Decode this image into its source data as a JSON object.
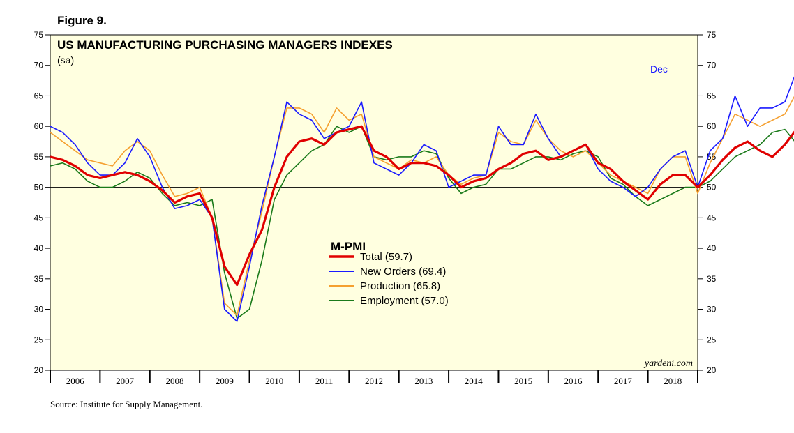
{
  "figure_label": "Figure 9.",
  "source": "Source: Institute for Supply Management.",
  "watermark": "yardeni.com",
  "end_label": "Dec",
  "colors": {
    "background": "#ffffe0",
    "total": "#e00000",
    "new_orders": "#1a1aff",
    "production": "#f5a030",
    "employment": "#1a7a1a"
  },
  "chart_data": {
    "type": "line",
    "title": "US MANUFACTURING PURCHASING MANAGERS INDEXES",
    "subtitle": "(sa)",
    "xlabel": "",
    "ylabel": "",
    "ylim": [
      20,
      75
    ],
    "yticks": [
      20,
      25,
      30,
      35,
      40,
      45,
      50,
      55,
      60,
      65,
      70,
      75
    ],
    "reference_line": 50,
    "x_start": 2006.0,
    "x_end": 2019.0,
    "x_step": 0.25,
    "x_tick_labels": [
      "2006",
      "2007",
      "2008",
      "2009",
      "2010",
      "2011",
      "2012",
      "2013",
      "2014",
      "2015",
      "2016",
      "2017",
      "2018"
    ],
    "legend_title": "M-PMI",
    "legend_position": "center",
    "series": [
      {
        "key": "total",
        "name": "Total (59.7)",
        "values": [
          55,
          54.5,
          53.5,
          52,
          51.5,
          52,
          52.5,
          52,
          51,
          49.5,
          47.5,
          48.5,
          49,
          45,
          37,
          34,
          39,
          43,
          50,
          55,
          57.5,
          58,
          57,
          59,
          59.5,
          60,
          56,
          55,
          53,
          54,
          54,
          53.5,
          52,
          50,
          51,
          51.5,
          53,
          54,
          55.5,
          56,
          54.5,
          55,
          56,
          57,
          54,
          53,
          51,
          49.5,
          48,
          50.5,
          52,
          52,
          50,
          52,
          54.5,
          56.5,
          57.5,
          56,
          55,
          57,
          59.7
        ]
      },
      {
        "key": "new_orders",
        "name": "New Orders (69.4)",
        "values": [
          60,
          59,
          57,
          54,
          52,
          52,
          54,
          58,
          55,
          50,
          46.5,
          47,
          48,
          45,
          30,
          28,
          37,
          47,
          55,
          64,
          62,
          61,
          58,
          59,
          60,
          64,
          54,
          53,
          52,
          54,
          57,
          56,
          50,
          51,
          52,
          52,
          60,
          57,
          57,
          62,
          58,
          55,
          56,
          57,
          53,
          51,
          50,
          48.5,
          50,
          53,
          55,
          56,
          50,
          56,
          58,
          65,
          60,
          63,
          63,
          64,
          69.4
        ]
      },
      {
        "key": "production",
        "name": "Production (65.8)",
        "values": [
          59,
          57.5,
          56,
          54.5,
          54,
          53.5,
          56,
          57.5,
          56,
          52,
          48.5,
          49,
          50,
          45,
          31,
          29,
          38,
          46,
          55,
          63,
          63,
          62,
          59,
          63,
          61,
          62,
          55,
          54,
          53,
          54.5,
          54,
          55,
          52,
          50.5,
          51.5,
          52,
          59,
          57.5,
          57,
          61,
          58,
          56,
          55,
          56,
          54,
          52,
          51,
          50,
          49,
          53,
          55,
          55,
          49,
          54,
          58,
          62,
          61,
          60,
          61,
          62,
          65.8
        ]
      },
      {
        "key": "employment",
        "name": "Employment (57.0)",
        "values": [
          53.5,
          54,
          53,
          51,
          50,
          50,
          51,
          52.5,
          51.5,
          49,
          47,
          47.5,
          47,
          48,
          36,
          28.5,
          30,
          38,
          48,
          52,
          54,
          56,
          57,
          60,
          59,
          60,
          55,
          54.5,
          55,
          55,
          56,
          55.5,
          51.5,
          49,
          50,
          50.5,
          53,
          53,
          54,
          55,
          55,
          54.5,
          55.5,
          56,
          55,
          51.5,
          50.5,
          48.5,
          47,
          48,
          49,
          50,
          50,
          51,
          53,
          55,
          56,
          57,
          59,
          59.5,
          57
        ]
      }
    ]
  }
}
